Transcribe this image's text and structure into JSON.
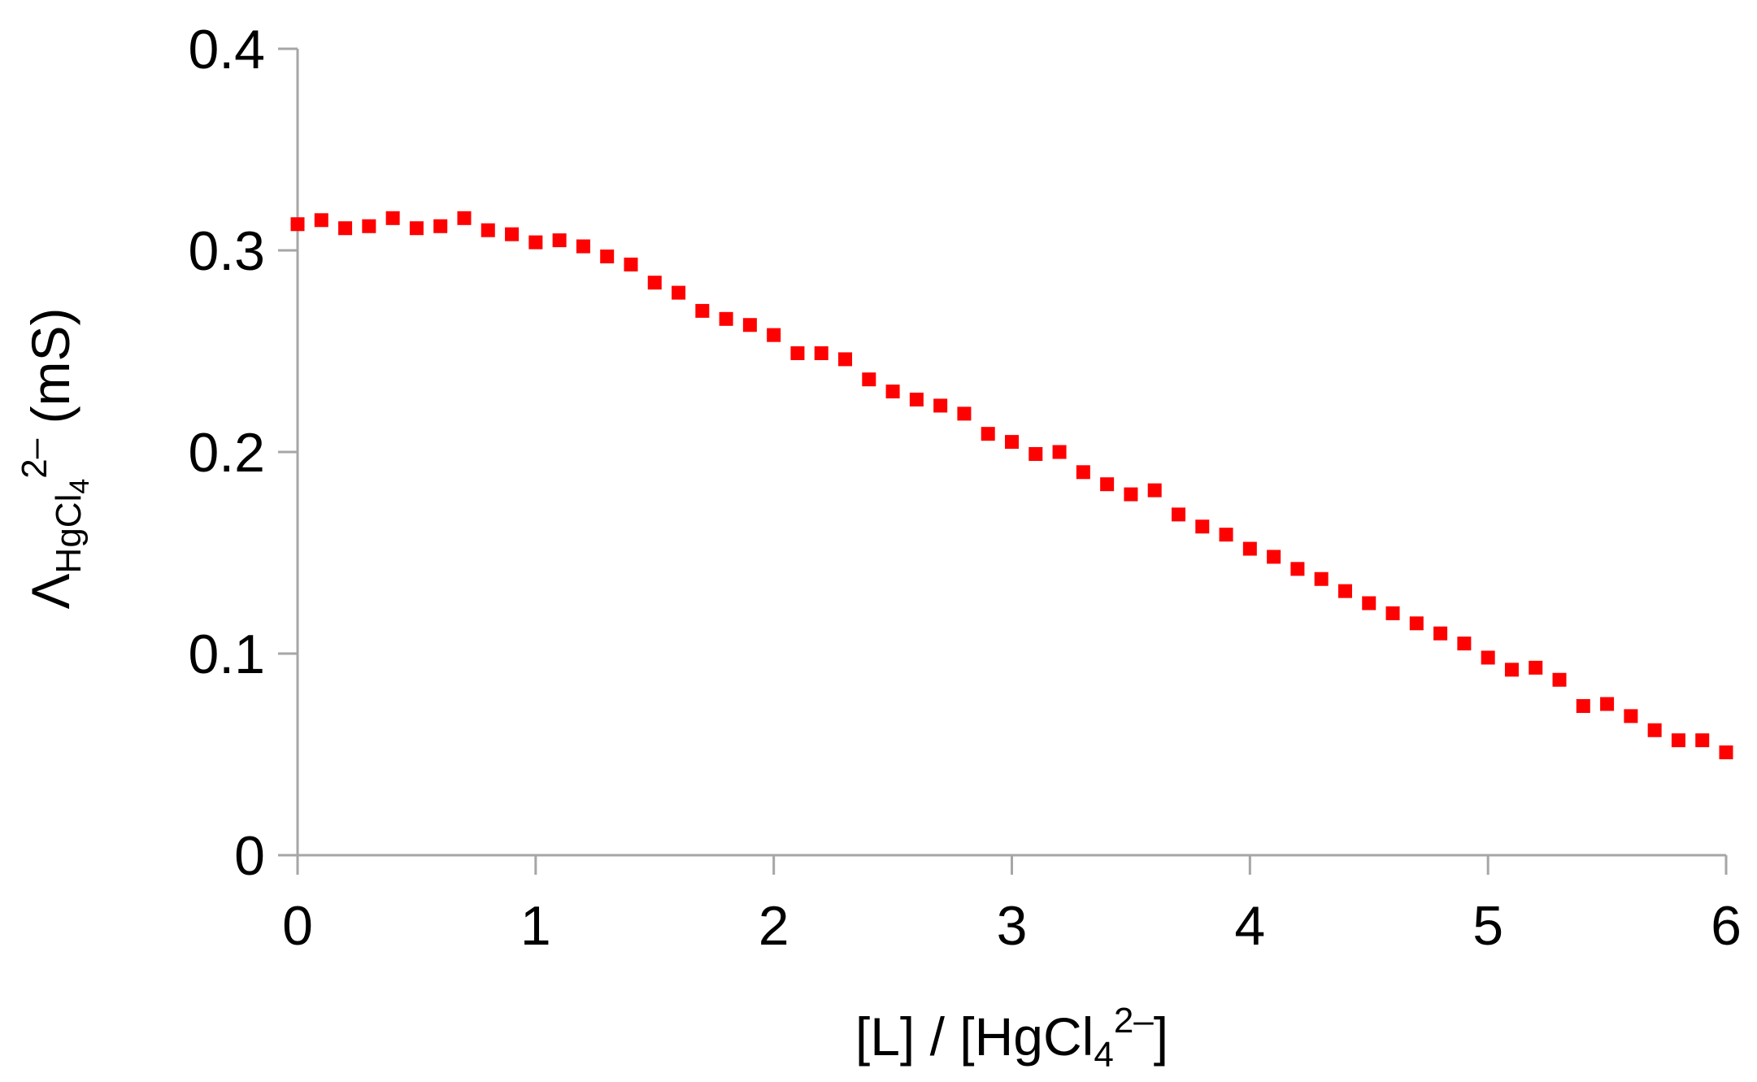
{
  "chart_data": {
    "type": "scatter",
    "xlabel": {
      "main": "[L] / [HgCl",
      "sub": "4",
      "sup": "2–",
      "end": "]"
    },
    "ylabel": {
      "main": "Λ",
      "sub": "HgCl",
      "subsub": "4",
      "sup": "2–",
      "end": " (mS)"
    },
    "xlim": [
      0,
      6
    ],
    "ylim": [
      0,
      0.4
    ],
    "xticks": [
      "0",
      "1",
      "2",
      "3",
      "4",
      "5",
      "6"
    ],
    "yticks": [
      "0",
      "0.1",
      "0.2",
      "0.3",
      "0.4"
    ],
    "marker_color": "#ff0000",
    "grid": false,
    "legend": "none",
    "x": [
      0,
      0.1,
      0.2,
      0.3,
      0.4,
      0.5,
      0.6,
      0.7,
      0.8,
      0.9,
      1.0,
      1.1,
      1.2,
      1.3,
      1.4,
      1.5,
      1.6,
      1.7,
      1.8,
      1.9,
      2.0,
      2.1,
      2.2,
      2.3,
      2.4,
      2.5,
      2.6,
      2.7,
      2.8,
      2.9,
      3.0,
      3.1,
      3.2,
      3.3,
      3.4,
      3.5,
      3.6,
      3.7,
      3.8,
      3.9,
      4.0,
      4.1,
      4.2,
      4.3,
      4.4,
      4.5,
      4.6,
      4.7,
      4.8,
      4.9,
      5.0,
      5.1,
      5.2,
      5.3,
      5.4,
      5.5,
      5.6,
      5.7,
      5.8,
      5.9,
      6.0
    ],
    "y": [
      0.313,
      0.315,
      0.311,
      0.312,
      0.316,
      0.311,
      0.312,
      0.316,
      0.31,
      0.308,
      0.304,
      0.305,
      0.302,
      0.297,
      0.293,
      0.284,
      0.279,
      0.27,
      0.266,
      0.263,
      0.258,
      0.249,
      0.249,
      0.246,
      0.236,
      0.23,
      0.226,
      0.223,
      0.219,
      0.209,
      0.205,
      0.199,
      0.2,
      0.19,
      0.184,
      0.179,
      0.181,
      0.169,
      0.163,
      0.159,
      0.152,
      0.148,
      0.142,
      0.137,
      0.131,
      0.125,
      0.12,
      0.115,
      0.11,
      0.105,
      0.098,
      0.092,
      0.093,
      0.087,
      0.074,
      0.075,
      0.069,
      0.062,
      0.057,
      0.057,
      0.051
    ]
  }
}
